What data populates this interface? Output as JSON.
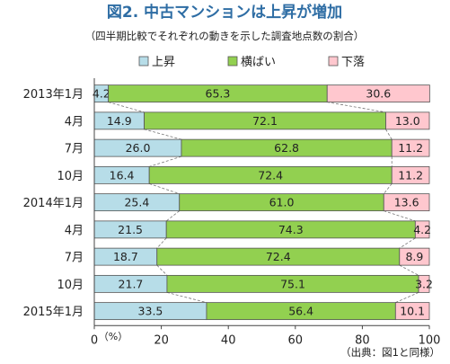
{
  "chart_data": {
    "type": "bar",
    "orientation": "horizontal",
    "stacked": true,
    "title": "図2. 中古マンションは上昇が増加",
    "subtitle": "（四半期比較でそれぞれの動きを示した調査地点数の割合）",
    "categories": [
      "2013年1月",
      "4月",
      "7月",
      "10月",
      "2014年1月",
      "4月",
      "7月",
      "10月",
      "2015年1月"
    ],
    "series": [
      {
        "name": "上昇",
        "color": "#b7dde8",
        "values": [
          4.2,
          14.9,
          26.0,
          16.4,
          25.4,
          21.5,
          18.7,
          21.7,
          33.5
        ]
      },
      {
        "name": "横ばい",
        "color": "#92d050",
        "values": [
          65.3,
          72.1,
          62.8,
          72.4,
          61.0,
          74.3,
          72.4,
          75.1,
          56.4
        ]
      },
      {
        "name": "下落",
        "color": "#ffc7ce",
        "values": [
          30.6,
          13.0,
          11.2,
          11.2,
          13.6,
          4.2,
          8.9,
          3.2,
          10.1
        ]
      }
    ],
    "value_labels": [
      [
        "4.2",
        "65.3",
        "30.6"
      ],
      [
        "14.9",
        "72.1",
        "13.0"
      ],
      [
        "26.0",
        "62.8",
        "11.2"
      ],
      [
        "16.4",
        "72.4",
        "11.2"
      ],
      [
        "25.4",
        "61.0",
        "13.6"
      ],
      [
        "21.5",
        "74.3",
        "4.2"
      ],
      [
        "18.7",
        "72.4",
        "8.9"
      ],
      [
        "21.7",
        "75.1",
        "3.2"
      ],
      [
        "33.5",
        "56.4",
        "10.1"
      ]
    ],
    "xlim": [
      0,
      100
    ],
    "x_ticks": [
      "0",
      "20",
      "40",
      "60",
      "80",
      "100"
    ],
    "x_unit": "（%）",
    "legend_position": "top",
    "grid": false,
    "source_note": "（出典：図1と同様）"
  }
}
